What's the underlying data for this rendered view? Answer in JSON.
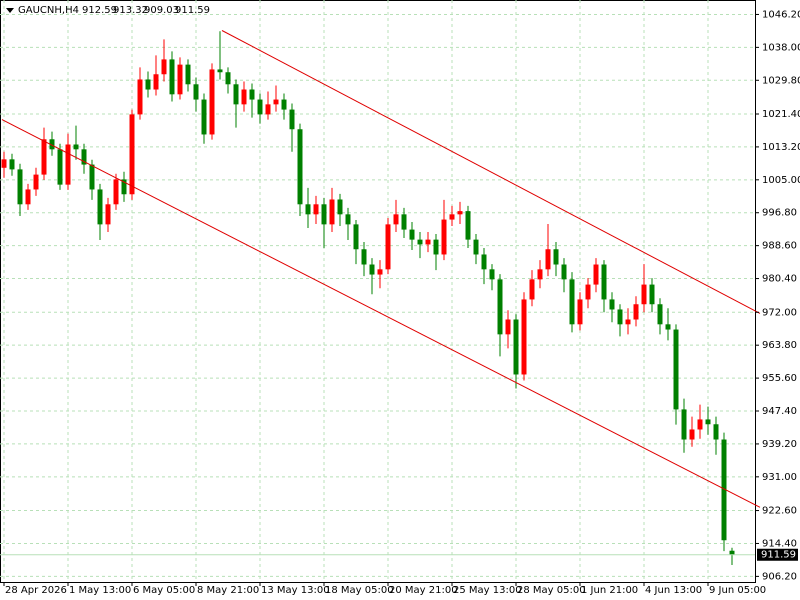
{
  "chart_data": {
    "type": "candlestick",
    "symbol": "GAUCNH,H4",
    "categories": [
      "28 Apr 2026",
      null,
      null,
      null,
      null,
      null,
      null,
      null,
      "1 May 13:00",
      null,
      null,
      null,
      null,
      null,
      null,
      null,
      "6 May 05:00",
      null,
      null,
      null,
      null,
      null,
      null,
      null,
      "8 May 21:00",
      null,
      null,
      null,
      null,
      null,
      null,
      null,
      "13 May 13:00",
      null,
      null,
      null,
      null,
      null,
      null,
      null,
      "18 May 05:00",
      null,
      null,
      null,
      null,
      null,
      null,
      null,
      "20 May 21:00",
      null,
      null,
      null,
      null,
      null,
      null,
      null,
      "25 May 13:00",
      null,
      null,
      null,
      null,
      null,
      null,
      null,
      "28 May 05:00",
      null,
      null,
      null,
      null,
      null,
      null,
      null,
      "1 Jun 21:00",
      null,
      null,
      null,
      null,
      null,
      null,
      null,
      "4 Jun 13:00",
      null,
      null,
      null,
      null,
      null,
      null,
      null,
      "9 Jun 05:00",
      null,
      null,
      null
    ],
    "ohlc": [
      [
        1008.0,
        1012.0,
        1005.5,
        1010.1
      ],
      [
        1010.1,
        1011.5,
        1006.0,
        1007.6
      ],
      [
        1007.6,
        1009.0,
        996.0,
        998.9
      ],
      [
        998.9,
        1004.0,
        997.5,
        1002.6
      ],
      [
        1002.6,
        1008.0,
        1001.0,
        1006.3
      ],
      [
        1006.3,
        1018.0,
        1005.0,
        1015.1
      ],
      [
        1015.1,
        1017.0,
        1011.0,
        1012.6
      ],
      [
        1012.6,
        1014.0,
        1002.5,
        1003.8
      ],
      [
        1003.8,
        1016.5,
        1002.5,
        1013.8
      ],
      [
        1013.8,
        1018.5,
        1010.0,
        1012.6
      ],
      [
        1012.6,
        1014.0,
        1006.5,
        1008.8
      ],
      [
        1008.8,
        1010.0,
        1000.0,
        1002.6
      ],
      [
        1002.6,
        1004.0,
        990.0,
        993.9
      ],
      [
        993.9,
        1000.5,
        992.0,
        998.9
      ],
      [
        998.9,
        1006.5,
        997.5,
        1005.1
      ],
      [
        1005.1,
        1007.0,
        999.5,
        1001.4
      ],
      [
        1001.4,
        1022.5,
        1000.0,
        1021.3
      ],
      [
        1021.3,
        1033.0,
        1020.0,
        1030.0
      ],
      [
        1030.0,
        1032.0,
        1025.5,
        1027.5
      ],
      [
        1027.5,
        1036.0,
        1026.0,
        1031.3
      ],
      [
        1031.3,
        1040.0,
        1029.5,
        1035.0
      ],
      [
        1035.0,
        1037.0,
        1024.5,
        1026.3
      ],
      [
        1026.3,
        1035.5,
        1025.0,
        1033.7
      ],
      [
        1033.7,
        1035.0,
        1027.0,
        1028.8
      ],
      [
        1028.8,
        1030.5,
        1022.0,
        1025.0
      ],
      [
        1025.0,
        1026.5,
        1014.0,
        1016.3
      ],
      [
        1016.3,
        1034.0,
        1015.0,
        1032.5
      ],
      [
        1032.5,
        1042.0,
        1030.0,
        1031.8
      ],
      [
        1031.8,
        1033.0,
        1026.5,
        1028.8
      ],
      [
        1028.8,
        1030.0,
        1018.0,
        1023.8
      ],
      [
        1023.8,
        1029.5,
        1022.0,
        1027.5
      ],
      [
        1027.5,
        1029.0,
        1020.5,
        1025.0
      ],
      [
        1025.0,
        1026.5,
        1019.0,
        1021.3
      ],
      [
        1021.3,
        1027.0,
        1020.0,
        1023.8
      ],
      [
        1023.8,
        1028.5,
        1022.0,
        1025.0
      ],
      [
        1025.0,
        1026.5,
        1020.0,
        1022.5
      ],
      [
        1022.5,
        1024.0,
        1012.0,
        1017.6
      ],
      [
        1017.6,
        1019.0,
        996.0,
        998.9
      ],
      [
        998.9,
        1003.0,
        993.0,
        996.4
      ],
      [
        996.4,
        1001.0,
        994.0,
        998.9
      ],
      [
        998.9,
        1000.5,
        988.0,
        993.9
      ],
      [
        993.9,
        1003.0,
        992.0,
        1000.1
      ],
      [
        1000.1,
        1001.5,
        993.5,
        996.4
      ],
      [
        996.4,
        998.0,
        990.0,
        993.9
      ],
      [
        993.9,
        995.0,
        984.0,
        987.7
      ],
      [
        987.7,
        989.5,
        981.0,
        983.9
      ],
      [
        983.9,
        985.5,
        976.5,
        981.4
      ],
      [
        981.4,
        985.0,
        978.0,
        982.7
      ],
      [
        982.7,
        995.5,
        981.5,
        993.9
      ],
      [
        993.9,
        1000.0,
        992.0,
        996.4
      ],
      [
        996.4,
        998.0,
        990.5,
        992.6
      ],
      [
        992.6,
        994.5,
        987.5,
        990.1
      ],
      [
        990.1,
        992.0,
        985.5,
        988.9
      ],
      [
        988.9,
        992.0,
        987.0,
        990.1
      ],
      [
        990.1,
        991.5,
        982.5,
        986.4
      ],
      [
        986.4,
        1000.0,
        985.0,
        995.1
      ],
      [
        995.1,
        998.5,
        993.5,
        996.4
      ],
      [
        996.4,
        999.5,
        994.0,
        997.2
      ],
      [
        997.2,
        998.5,
        988.0,
        990.1
      ],
      [
        990.1,
        991.5,
        984.0,
        986.4
      ],
      [
        986.4,
        988.0,
        979.0,
        982.7
      ],
      [
        982.7,
        984.0,
        977.5,
        980.2
      ],
      [
        980.2,
        981.5,
        961.0,
        966.5
      ],
      [
        966.5,
        972.5,
        963.0,
        970.2
      ],
      [
        970.2,
        971.5,
        953.0,
        956.5
      ],
      [
        956.5,
        977.0,
        955.0,
        975.2
      ],
      [
        975.2,
        982.5,
        973.5,
        980.2
      ],
      [
        980.2,
        985.0,
        978.0,
        982.7
      ],
      [
        982.7,
        994.0,
        981.0,
        987.7
      ],
      [
        987.7,
        989.5,
        981.0,
        983.9
      ],
      [
        983.9,
        985.5,
        977.0,
        980.2
      ],
      [
        980.2,
        982.0,
        967.0,
        969.0
      ],
      [
        969.0,
        977.0,
        967.5,
        975.2
      ],
      [
        975.2,
        980.5,
        973.0,
        978.9
      ],
      [
        978.9,
        985.5,
        977.0,
        983.9
      ],
      [
        983.9,
        985.0,
        972.0,
        975.2
      ],
      [
        975.2,
        977.0,
        969.5,
        972.7
      ],
      [
        972.7,
        974.0,
        966.0,
        969.0
      ],
      [
        969.0,
        973.0,
        966.5,
        970.2
      ],
      [
        970.2,
        976.0,
        968.5,
        974.0
      ],
      [
        974.0,
        984.0,
        972.0,
        978.9
      ],
      [
        978.9,
        980.5,
        972.0,
        974.0
      ],
      [
        974.0,
        975.5,
        966.5,
        969.0
      ],
      [
        969.0,
        973.0,
        965.0,
        967.7
      ],
      [
        967.7,
        969.0,
        944.0,
        947.8
      ],
      [
        947.8,
        950.5,
        937.0,
        940.3
      ],
      [
        940.3,
        946.0,
        938.5,
        942.8
      ],
      [
        942.8,
        949.0,
        940.5,
        945.3
      ],
      [
        945.3,
        948.5,
        941.5,
        944.1
      ],
      [
        944.1,
        946.0,
        936.5,
        940.3
      ],
      [
        940.3,
        942.0,
        912.5,
        915.2
      ],
      [
        912.59,
        913.32,
        909.03,
        911.59
      ]
    ],
    "up_color": "#ff0000",
    "down_color": "#008000",
    "ylim": [
      904.8,
      1049.8
    ],
    "yticks": [
      {
        "value": 906.2,
        "label": "906.20"
      },
      {
        "value": 914.4,
        "label": "914.40"
      },
      {
        "value": 922.6,
        "label": "922.60"
      },
      {
        "value": 931.0,
        "label": "931.00"
      },
      {
        "value": 939.2,
        "label": "939.20"
      },
      {
        "value": 947.4,
        "label": "947.40"
      },
      {
        "value": 955.6,
        "label": "955.60"
      },
      {
        "value": 963.8,
        "label": "963.80"
      },
      {
        "value": 972.0,
        "label": "972.00"
      },
      {
        "value": 980.4,
        "label": "980.40"
      },
      {
        "value": 988.6,
        "label": "988.60"
      },
      {
        "value": 996.8,
        "label": "996.80"
      },
      {
        "value": 1005.0,
        "label": "1005.00"
      },
      {
        "value": 1013.2,
        "label": "1013.20"
      },
      {
        "value": 1021.4,
        "label": "1021.40"
      },
      {
        "value": 1029.8,
        "label": "1029.80"
      },
      {
        "value": 1038.0,
        "label": "1038.00"
      },
      {
        "value": 1046.2,
        "label": "1046.20"
      }
    ],
    "grid": true,
    "grid_color": "#b8e0b8",
    "trendlines": [
      {
        "x": [
          27.25,
          94.5
        ],
        "y": [
          1042.2,
          971.7
        ],
        "color": "#e00000"
      },
      {
        "x": [
          -0.25,
          94.5
        ],
        "y": [
          1020.0,
          923.4
        ],
        "color": "#e00000"
      }
    ],
    "bid_line_color": "#b8e0b8"
  }
}
